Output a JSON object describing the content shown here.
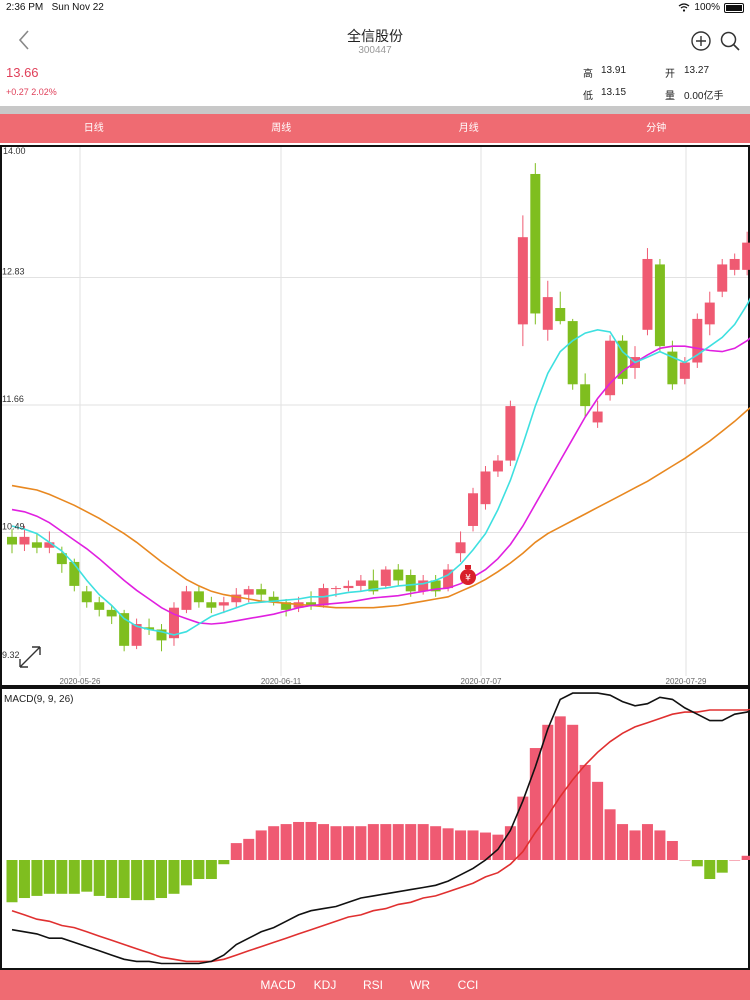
{
  "status_bar": {
    "time": "2:36 PM",
    "date": "Sun Nov 22",
    "battery": "100%"
  },
  "header": {
    "title": "全信股份",
    "code": "300447"
  },
  "quote": {
    "price": "13.66",
    "change": "+0.27 2.02%",
    "high_label": "高",
    "high": "13.91",
    "open_label": "开",
    "open": "13.27",
    "low_label": "低",
    "low": "13.15",
    "volume_label": "量",
    "volume": "0.00亿手"
  },
  "tabs": [
    "日线",
    "周线",
    "月线",
    "分钟"
  ],
  "bottom_tabs": [
    "MACD",
    "KDJ",
    "RSI",
    "WR",
    "CCI"
  ],
  "colors": {
    "up": "#ef5a72",
    "down": "#7fbe1f",
    "ma5": "#3ee0e0",
    "ma10": "#e020e0",
    "ma20": "#e88820",
    "dif": "#111111",
    "dea": "#e03030",
    "tab_bg": "#ef6b72"
  },
  "chart_data": [
    {
      "type": "candlestick",
      "y_ticks": [
        "14.00",
        "12.83",
        "11.66",
        "10.49",
        "9.32"
      ],
      "ylim": [
        9.32,
        14.0
      ],
      "x_ticks": [
        "2020-05-26",
        "2020-06-11",
        "2020-07-07",
        "2020-07-29"
      ],
      "grid": true,
      "candles": [
        [
          10.45,
          10.38,
          10.52,
          10.3
        ],
        [
          10.38,
          10.45,
          10.55,
          10.32
        ],
        [
          10.4,
          10.35,
          10.48,
          10.3
        ],
        [
          10.35,
          10.4,
          10.5,
          10.3
        ],
        [
          10.3,
          10.2,
          10.36,
          10.12
        ],
        [
          10.22,
          10.0,
          10.25,
          9.95
        ],
        [
          9.95,
          9.85,
          10.0,
          9.8
        ],
        [
          9.85,
          9.78,
          9.9,
          9.72
        ],
        [
          9.78,
          9.72,
          9.82,
          9.65
        ],
        [
          9.75,
          9.45,
          9.78,
          9.4
        ],
        [
          9.45,
          9.65,
          9.7,
          9.42
        ],
        [
          9.62,
          9.6,
          9.7,
          9.55
        ],
        [
          9.6,
          9.5,
          9.65,
          9.4
        ],
        [
          9.52,
          9.8,
          9.85,
          9.45
        ],
        [
          9.78,
          9.95,
          10.0,
          9.75
        ],
        [
          9.95,
          9.85,
          10.0,
          9.8
        ],
        [
          9.85,
          9.8,
          9.9,
          9.75
        ],
        [
          9.82,
          9.85,
          9.9,
          9.75
        ],
        [
          9.85,
          9.92,
          9.98,
          9.8
        ],
        [
          9.92,
          9.97,
          10.0,
          9.85
        ],
        [
          9.97,
          9.92,
          10.02,
          9.85
        ],
        [
          9.9,
          9.85,
          9.95,
          9.82
        ],
        [
          9.85,
          9.78,
          9.88,
          9.72
        ],
        [
          9.8,
          9.85,
          9.9,
          9.76
        ],
        [
          9.85,
          9.82,
          9.95,
          9.78
        ],
        [
          9.82,
          9.98,
          10.02,
          9.8
        ],
        [
          9.98,
          9.98,
          10.0,
          9.9
        ],
        [
          9.98,
          10.0,
          10.05,
          9.95
        ],
        [
          10.0,
          10.05,
          10.1,
          9.95
        ],
        [
          10.05,
          9.95,
          10.15,
          9.92
        ],
        [
          10.0,
          10.15,
          10.18,
          9.98
        ],
        [
          10.15,
          10.05,
          10.2,
          10.0
        ],
        [
          10.1,
          9.95,
          10.15,
          9.9
        ],
        [
          9.95,
          10.05,
          10.1,
          9.92
        ],
        [
          10.05,
          9.95,
          10.1,
          9.9
        ],
        [
          9.98,
          10.15,
          10.2,
          9.95
        ],
        [
          10.3,
          10.4,
          10.5,
          10.22
        ],
        [
          10.55,
          10.85,
          10.9,
          10.5
        ],
        [
          10.75,
          11.05,
          11.1,
          10.7
        ],
        [
          11.05,
          11.15,
          11.2,
          11.0
        ],
        [
          11.15,
          11.65,
          11.7,
          11.1
        ],
        [
          12.4,
          13.2,
          13.4,
          12.2
        ],
        [
          13.78,
          12.5,
          13.88,
          12.4
        ],
        [
          12.35,
          12.65,
          12.8,
          12.25
        ],
        [
          12.55,
          12.43,
          12.7,
          12.4
        ],
        [
          12.43,
          11.85,
          12.45,
          11.8
        ],
        [
          11.85,
          11.65,
          11.95,
          11.55
        ],
        [
          11.5,
          11.6,
          11.7,
          11.45
        ],
        [
          11.75,
          12.25,
          12.3,
          11.7
        ],
        [
          12.25,
          11.9,
          12.3,
          11.85
        ],
        [
          12.0,
          12.1,
          12.2,
          11.9
        ],
        [
          12.35,
          13.0,
          13.1,
          12.3
        ],
        [
          12.95,
          12.2,
          13.0,
          12.15
        ],
        [
          12.15,
          11.85,
          12.25,
          11.8
        ],
        [
          11.9,
          12.05,
          12.1,
          11.85
        ],
        [
          12.05,
          12.45,
          12.5,
          12.0
        ],
        [
          12.4,
          12.6,
          12.7,
          12.3
        ],
        [
          12.7,
          12.95,
          13.0,
          12.65
        ],
        [
          12.9,
          13.0,
          13.05,
          12.85
        ],
        [
          12.9,
          13.15,
          13.25,
          12.85
        ],
        [
          13.15,
          13.6,
          13.7,
          13.1
        ],
        [
          13.6,
          13.3,
          13.75,
          13.2
        ],
        [
          13.27,
          13.66,
          13.91,
          13.15
        ]
      ],
      "ma5": [
        10.55,
        10.52,
        10.48,
        10.4,
        10.32,
        10.2,
        10.05,
        9.92,
        9.82,
        9.7,
        9.63,
        9.6,
        9.58,
        9.55,
        9.58,
        9.65,
        9.72,
        9.76,
        9.8,
        9.84,
        9.85,
        9.86,
        9.87,
        9.88,
        9.9,
        9.9,
        9.92,
        9.94,
        9.95,
        9.97,
        9.98,
        10.0,
        10.01,
        10.02,
        10.05,
        10.1,
        10.2,
        10.33,
        10.48,
        10.7,
        10.97,
        11.3,
        11.65,
        11.95,
        12.15,
        12.25,
        12.32,
        12.35,
        12.33,
        12.15,
        12.05,
        12.1,
        12.15,
        12.1,
        12.05,
        12.12,
        12.2,
        12.28,
        12.4,
        12.58,
        12.8,
        13.0,
        13.13
      ],
      "ma10": [
        10.7,
        10.68,
        10.64,
        10.58,
        10.5,
        10.42,
        10.34,
        10.25,
        10.15,
        10.05,
        9.96,
        9.88,
        9.8,
        9.74,
        9.7,
        9.66,
        9.65,
        9.66,
        9.68,
        9.7,
        9.72,
        9.74,
        9.77,
        9.8,
        9.82,
        9.83,
        9.84,
        9.85,
        9.87,
        9.89,
        9.9,
        9.91,
        9.93,
        9.95,
        9.97,
        9.98,
        10.02,
        10.08,
        10.15,
        10.25,
        10.38,
        10.55,
        10.75,
        10.95,
        11.15,
        11.35,
        11.55,
        11.72,
        11.86,
        11.97,
        12.05,
        12.12,
        12.18,
        12.2,
        12.2,
        12.18,
        12.16,
        12.15,
        12.18,
        12.25,
        12.35,
        12.45,
        12.55
      ],
      "ma20": [
        10.92,
        10.9,
        10.88,
        10.84,
        10.79,
        10.74,
        10.68,
        10.62,
        10.55,
        10.48,
        10.4,
        10.31,
        10.22,
        10.14,
        10.06,
        10.0,
        9.95,
        9.92,
        9.9,
        9.88,
        9.86,
        9.85,
        9.84,
        9.83,
        9.82,
        9.81,
        9.8,
        9.8,
        9.8,
        9.8,
        9.81,
        9.82,
        9.84,
        9.86,
        9.88,
        9.9,
        9.95,
        10.0,
        10.06,
        10.13,
        10.21,
        10.3,
        10.4,
        10.48,
        10.54,
        10.6,
        10.66,
        10.72,
        10.78,
        10.84,
        10.9,
        10.96,
        11.03,
        11.1,
        11.17,
        11.25,
        11.33,
        11.42,
        11.51,
        11.61,
        11.71,
        11.82,
        11.93
      ]
    },
    {
      "type": "bar",
      "title": "MACD(9, 9, 26)",
      "ylim": [
        -0.5,
        0.8
      ],
      "histogram": [
        -0.2,
        -0.18,
        -0.17,
        -0.16,
        -0.16,
        -0.16,
        -0.15,
        -0.17,
        -0.18,
        -0.18,
        -0.19,
        -0.19,
        -0.18,
        -0.16,
        -0.12,
        -0.09,
        -0.09,
        -0.02,
        0.08,
        0.1,
        0.14,
        0.16,
        0.17,
        0.18,
        0.18,
        0.17,
        0.16,
        0.16,
        0.16,
        0.17,
        0.17,
        0.17,
        0.17,
        0.17,
        0.16,
        0.15,
        0.14,
        0.14,
        0.13,
        0.12,
        0.16,
        0.3,
        0.53,
        0.64,
        0.68,
        0.64,
        0.45,
        0.37,
        0.24,
        0.17,
        0.14,
        0.17,
        0.14,
        0.09,
        0.0,
        -0.03,
        -0.09,
        -0.06,
        0.0,
        0.02,
        0.14,
        0.14,
        0.15
      ],
      "dif": [
        -0.33,
        -0.34,
        -0.35,
        -0.37,
        -0.37,
        -0.39,
        -0.41,
        -0.43,
        -0.45,
        -0.47,
        -0.48,
        -0.48,
        -0.49,
        -0.49,
        -0.49,
        -0.49,
        -0.48,
        -0.45,
        -0.4,
        -0.37,
        -0.34,
        -0.32,
        -0.29,
        -0.26,
        -0.24,
        -0.23,
        -0.22,
        -0.2,
        -0.18,
        -0.17,
        -0.16,
        -0.15,
        -0.14,
        -0.13,
        -0.12,
        -0.1,
        -0.07,
        -0.04,
        0.0,
        0.05,
        0.14,
        0.28,
        0.44,
        0.62,
        0.76,
        0.79,
        0.79,
        0.79,
        0.78,
        0.75,
        0.73,
        0.74,
        0.77,
        0.76,
        0.72,
        0.69,
        0.66,
        0.66,
        0.69,
        0.7,
        0.73,
        0.78,
        0.81
      ],
      "dea": [
        -0.24,
        -0.26,
        -0.28,
        -0.29,
        -0.31,
        -0.32,
        -0.34,
        -0.36,
        -0.38,
        -0.4,
        -0.42,
        -0.44,
        -0.46,
        -0.47,
        -0.48,
        -0.48,
        -0.48,
        -0.47,
        -0.45,
        -0.43,
        -0.41,
        -0.39,
        -0.37,
        -0.35,
        -0.33,
        -0.31,
        -0.29,
        -0.27,
        -0.26,
        -0.24,
        -0.23,
        -0.21,
        -0.2,
        -0.18,
        -0.17,
        -0.15,
        -0.13,
        -0.11,
        -0.08,
        -0.06,
        -0.02,
        0.04,
        0.13,
        0.21,
        0.3,
        0.38,
        0.45,
        0.51,
        0.56,
        0.6,
        0.63,
        0.65,
        0.67,
        0.69,
        0.7,
        0.7,
        0.71,
        0.71,
        0.71,
        0.71,
        0.72,
        0.73,
        0.75
      ]
    }
  ]
}
